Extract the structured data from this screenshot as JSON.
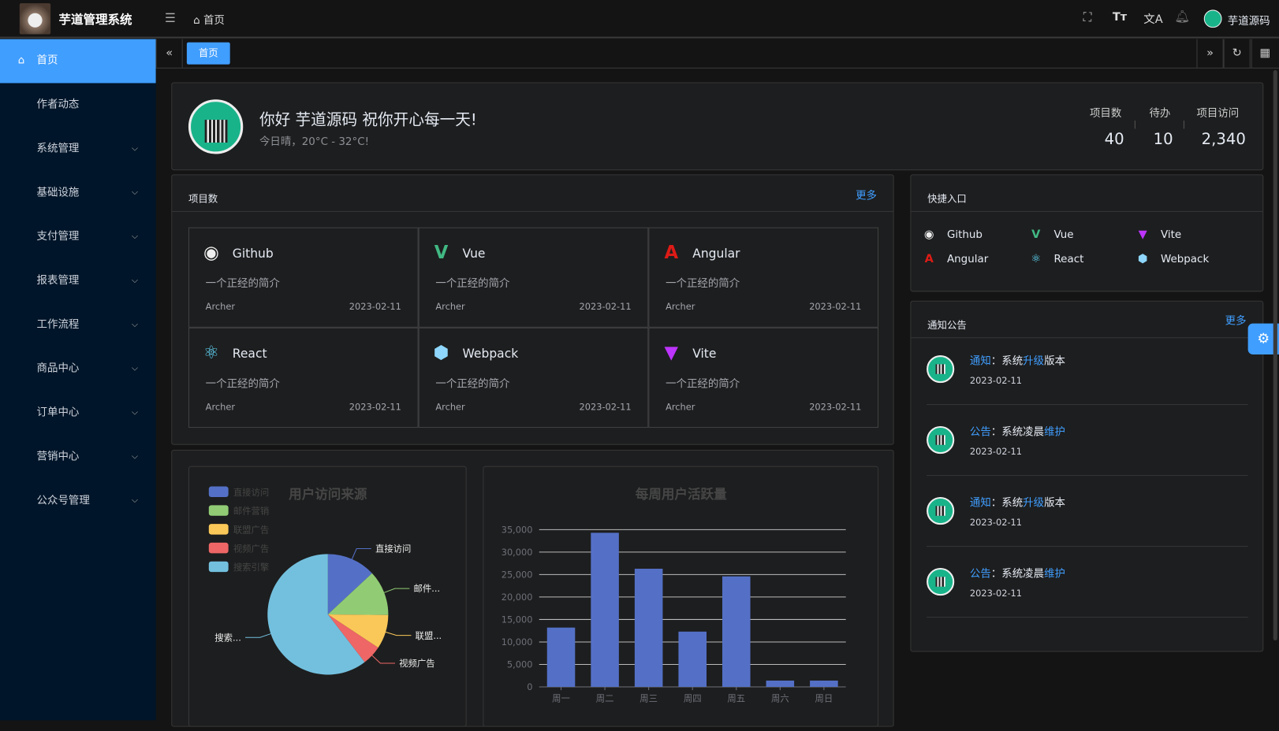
{
  "header": {
    "title": "芋道管理系统",
    "breadcrumb": "首页",
    "user_name": "芋道源码"
  },
  "sidebar": {
    "items": [
      {
        "label": "首页",
        "active": true
      },
      {
        "label": "作者动态"
      },
      {
        "label": "系统管理",
        "expandable": true
      },
      {
        "label": "基础设施",
        "expandable": true
      },
      {
        "label": "支付管理",
        "expandable": true
      },
      {
        "label": "报表管理",
        "expandable": true
      },
      {
        "label": "工作流程",
        "expandable": true
      },
      {
        "label": "商品中心",
        "expandable": true
      },
      {
        "label": "订单中心",
        "expandable": true
      },
      {
        "label": "营销中心",
        "expandable": true
      },
      {
        "label": "公众号管理",
        "expandable": true
      }
    ]
  },
  "tabs": [
    {
      "label": "首页",
      "active": true
    }
  ],
  "welcome": {
    "greeting": "你好 芋道源码 祝你开心每一天!",
    "weather": "今日晴，20°C - 32°C!",
    "stats": [
      {
        "label": "项目数",
        "value": "40"
      },
      {
        "label": "待办",
        "value": "10"
      },
      {
        "label": "项目访问",
        "value": "2,340"
      }
    ]
  },
  "projects": {
    "title": "项目数",
    "more": "更多",
    "items": [
      {
        "name": "Github",
        "icon": "github-icon",
        "desc": "一个正经的简介",
        "author": "Archer",
        "date": "2023-02-11"
      },
      {
        "name": "Vue",
        "icon": "vue-icon",
        "desc": "一个正经的简介",
        "author": "Archer",
        "date": "2023-02-11"
      },
      {
        "name": "Angular",
        "icon": "angular-icon",
        "desc": "一个正经的简介",
        "author": "Archer",
        "date": "2023-02-11"
      },
      {
        "name": "React",
        "icon": "react-icon",
        "desc": "一个正经的简介",
        "author": "Archer",
        "date": "2023-02-11"
      },
      {
        "name": "Webpack",
        "icon": "webpack-icon",
        "desc": "一个正经的简介",
        "author": "Archer",
        "date": "2023-02-11"
      },
      {
        "name": "Vite",
        "icon": "vite-icon",
        "desc": "一个正经的简介",
        "author": "Archer",
        "date": "2023-02-11"
      }
    ]
  },
  "shortcuts": {
    "title": "快捷入口",
    "items": [
      {
        "name": "Github"
      },
      {
        "name": "Vue"
      },
      {
        "name": "Vite"
      },
      {
        "name": "Angular"
      },
      {
        "name": "React"
      },
      {
        "name": "Webpack"
      }
    ]
  },
  "notices": {
    "title": "通知公告",
    "more": "更多",
    "items": [
      {
        "type": "通知",
        "sep": "：",
        "pre": "系统",
        "hl": "升级",
        "post": "版本",
        "date": "2023-02-11"
      },
      {
        "type": "公告",
        "sep": "：",
        "pre": "系统凌晨",
        "hl": "维护",
        "post": "",
        "date": "2023-02-11"
      },
      {
        "type": "通知",
        "sep": "：",
        "pre": "系统",
        "hl": "升级",
        "post": "版本",
        "date": "2023-02-11"
      },
      {
        "type": "公告",
        "sep": "：",
        "pre": "系统凌晨",
        "hl": "维护",
        "post": "",
        "date": "2023-02-11"
      }
    ]
  },
  "colors": {
    "accent": "#409eff",
    "sidebar": "#001529",
    "bar": "#5470c6"
  },
  "chart_data": [
    {
      "type": "pie",
      "title": "用户访问来源",
      "legend_position": "top-left",
      "categories": [
        "直接访问",
        "邮件营销",
        "联盟广告",
        "视频广告",
        "搜索引擎"
      ],
      "labels": [
        "直接访问",
        "邮件...",
        "联盟...",
        "视频广告",
        "搜索..."
      ],
      "values": [
        335,
        310,
        234,
        135,
        1548
      ],
      "colors": [
        "#5470c6",
        "#91cc75",
        "#fac858",
        "#ee6666",
        "#73c0de"
      ]
    },
    {
      "type": "bar",
      "title": "每周用户活跃量",
      "categories": [
        "周一",
        "周二",
        "周三",
        "周四",
        "周五",
        "周六",
        "周日"
      ],
      "values": [
        13200,
        34300,
        26300,
        12300,
        24600,
        1400,
        1400
      ],
      "ylim": [
        0,
        35000
      ],
      "yticks": [
        "0",
        "5,000",
        "10,000",
        "15,000",
        "20,000",
        "25,000",
        "30,000",
        "35,000"
      ],
      "grid": true
    }
  ]
}
